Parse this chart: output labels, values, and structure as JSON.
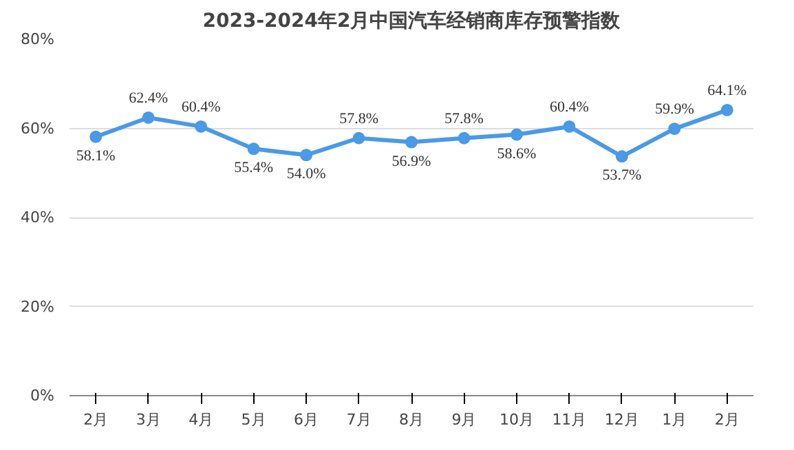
{
  "chart_data": {
    "type": "line",
    "title": "2023-2024年2月中国汽车经销商库存预警指数",
    "categories": [
      "2月",
      "3月",
      "4月",
      "5月",
      "6月",
      "7月",
      "8月",
      "9月",
      "10月",
      "11月",
      "12月",
      "1月",
      "2月"
    ],
    "series": [
      {
        "color": "#4a9ae6",
        "values": [
          58.1,
          62.4,
          60.4,
          55.4,
          54.0,
          57.8,
          56.9,
          57.8,
          58.6,
          60.4,
          53.7,
          59.9,
          64.1
        ],
        "value_labels": [
          "58.1%",
          "62.4%",
          "60.4%",
          "55.4%",
          "54.0%",
          "57.8%",
          "56.9%",
          "57.8%",
          "58.6%",
          "60.4%",
          "53.7%",
          "59.9%",
          "64.1%"
        ]
      }
    ],
    "ylim": [
      0,
      80
    ],
    "yticks": [
      {
        "value": 0,
        "label": "0%"
      },
      {
        "value": 20,
        "label": "20%"
      },
      {
        "value": 40,
        "label": "40%"
      },
      {
        "value": 60,
        "label": "60%"
      },
      {
        "value": 80,
        "label": "80%"
      }
    ],
    "grid": "y",
    "marker": "circle",
    "line_style": "solid"
  }
}
